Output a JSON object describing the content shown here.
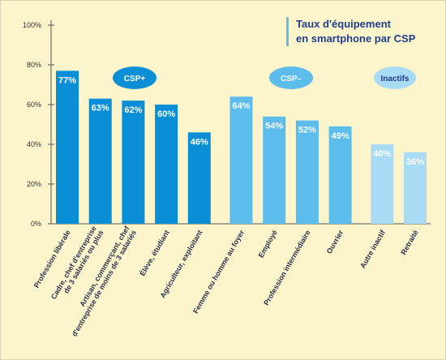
{
  "title_lines": [
    "Taux d'équipement",
    "en smartphone par CSP"
  ],
  "colors": {
    "background": "#fcf5cc",
    "title": "#1f3e8e",
    "csp_plus": "#0a8fd6",
    "csp_moins": "#5cbcec",
    "inactifs": "#aadbf4",
    "axis": "#555555"
  },
  "chart_data": {
    "type": "bar",
    "title": "Taux d'équipement en smartphone par CSP",
    "ylim": [
      0,
      100
    ],
    "y_ticks": [
      "0%",
      "20%",
      "40%",
      "60%",
      "80%",
      "100%"
    ],
    "grid": false,
    "groups": [
      {
        "name": "CSP+",
        "color": "#0a8fd6"
      },
      {
        "name": "CSP–",
        "color": "#5cbcec"
      },
      {
        "name": "Inactifs",
        "color": "#aadbf4"
      }
    ],
    "categories": [
      {
        "label": [
          "Profession libérale"
        ],
        "value": 77,
        "group": 0
      },
      {
        "label": [
          "Cadre, chef d'entreprise",
          "de 3 salariés ou plus"
        ],
        "value": 63,
        "group": 0
      },
      {
        "label": [
          "Artisan, commerçant, chef",
          "d'entreprise de moins de 3 salariés"
        ],
        "value": 62,
        "group": 0
      },
      {
        "label": [
          "Élève, étudiant"
        ],
        "value": 60,
        "group": 0
      },
      {
        "label": [
          "Agriculteur, exploitant"
        ],
        "value": 46,
        "group": 0
      },
      {
        "label": [
          "Femme ou homme au foyer"
        ],
        "value": 64,
        "group": 1
      },
      {
        "label": [
          "Employé"
        ],
        "value": 54,
        "group": 1
      },
      {
        "label": [
          "Profession intermédiaire"
        ],
        "value": 52,
        "group": 1
      },
      {
        "label": [
          "Ouvrier"
        ],
        "value": 49,
        "group": 1
      },
      {
        "label": [
          "Autre inactif"
        ],
        "value": 40,
        "group": 2
      },
      {
        "label": [
          "Retraité"
        ],
        "value": 36,
        "group": 2
      }
    ],
    "value_suffix": "%"
  }
}
